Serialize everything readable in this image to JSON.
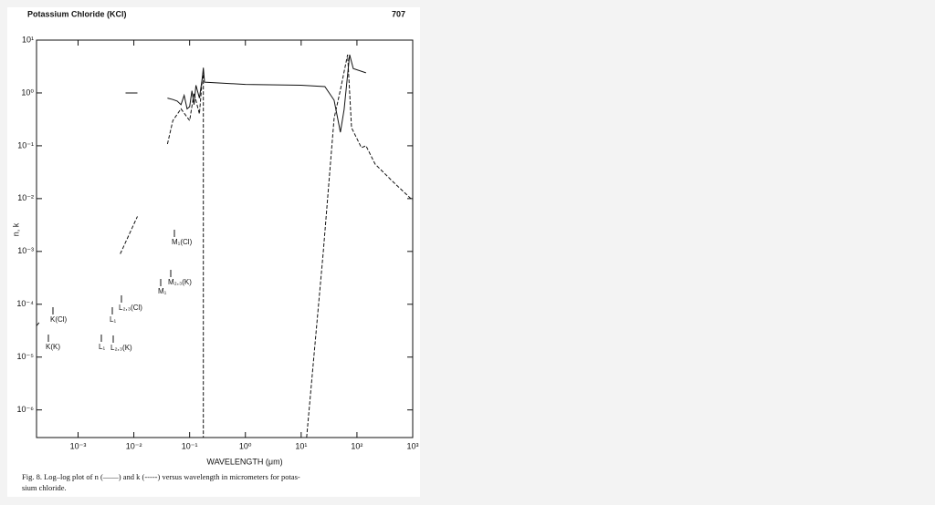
{
  "chart_data": {
    "type": "line",
    "header": "Potassium Chloride (KCl)",
    "page_number": "707",
    "xlabel": "WAVELENGTH (μm)",
    "ylabel": "n, k",
    "caption": [
      "Fig. 8. Log–log plot of n (——) and k (-----) versus wavelength in micrometers for potas-",
      "sium chloride."
    ],
    "xscale": "log",
    "yscale": "log",
    "xlim": [
      0.00018,
      1000
    ],
    "ylim": [
      3e-07,
      10
    ],
    "xticks": [
      {
        "value": 0.001,
        "label": "10⁻³"
      },
      {
        "value": 0.01,
        "label": "10⁻²"
      },
      {
        "value": 0.1,
        "label": "10⁻¹"
      },
      {
        "value": 1,
        "label": "10⁰"
      },
      {
        "value": 10,
        "label": "10¹"
      },
      {
        "value": 100,
        "label": "10²"
      },
      {
        "value": 1000,
        "label": "10³"
      }
    ],
    "yticks": [
      {
        "value": 10,
        "label": "10¹"
      },
      {
        "value": 1,
        "label": "10⁰"
      },
      {
        "value": 0.1,
        "label": "10⁻¹"
      },
      {
        "value": 0.01,
        "label": "10⁻²"
      },
      {
        "value": 0.001,
        "label": "10⁻³"
      },
      {
        "value": 0.0001,
        "label": "10⁻⁴"
      },
      {
        "value": 1e-05,
        "label": "10⁻⁵"
      },
      {
        "value": 1e-06,
        "label": "10⁻⁶"
      }
    ],
    "annotations": [
      "K(Cl)",
      "K(K)",
      "L₁",
      "L₂,₃(Cl)",
      "L₁",
      "L₂,₃(K)",
      "M₁(Cl)",
      "M₁",
      "M₂,₃(K)"
    ],
    "series": [
      {
        "name": "n",
        "color": "#111111",
        "dash": "solid",
        "x": [
          0.00018,
          0.0002,
          null,
          0.0071,
          0.0116,
          null,
          0.04,
          0.05,
          0.06,
          0.07,
          0.08,
          0.09,
          0.1,
          0.11,
          0.12,
          0.13,
          0.15,
          0.17,
          0.176,
          0.185,
          1,
          10,
          26.6,
          39,
          50.6,
          58.9,
          74,
          86,
          145
        ],
        "values": [
          3.9e-05,
          4.5e-05,
          null,
          1.0,
          1.0,
          null,
          0.8,
          0.75,
          0.7,
          0.6,
          0.9,
          0.5,
          0.55,
          1.1,
          0.6,
          1.4,
          0.8,
          2.0,
          3.0,
          1.6,
          1.45,
          1.4,
          1.32,
          0.73,
          0.18,
          0.49,
          5.3,
          2.9,
          2.4
        ]
      },
      {
        "name": "k",
        "color": "#111111",
        "dash": "dashed",
        "x": [
          0.0057,
          0.0116,
          null,
          0.04,
          0.05,
          0.07,
          0.1,
          0.12,
          0.15,
          0.17,
          0.176,
          0.176,
          null,
          12.5,
          25,
          39,
          50,
          68,
          80,
          120,
          145,
          212,
          450,
          1000
        ],
        "values": [
          0.0009,
          0.0046,
          null,
          0.108,
          0.3,
          0.5,
          0.3,
          1.0,
          0.4,
          2.0,
          2.5,
          3e-07,
          null,
          3e-07,
          0.001,
          0.33,
          1.08,
          5.3,
          0.22,
          0.092,
          0.1,
          0.045,
          0.0205,
          0.0093
        ]
      }
    ]
  }
}
